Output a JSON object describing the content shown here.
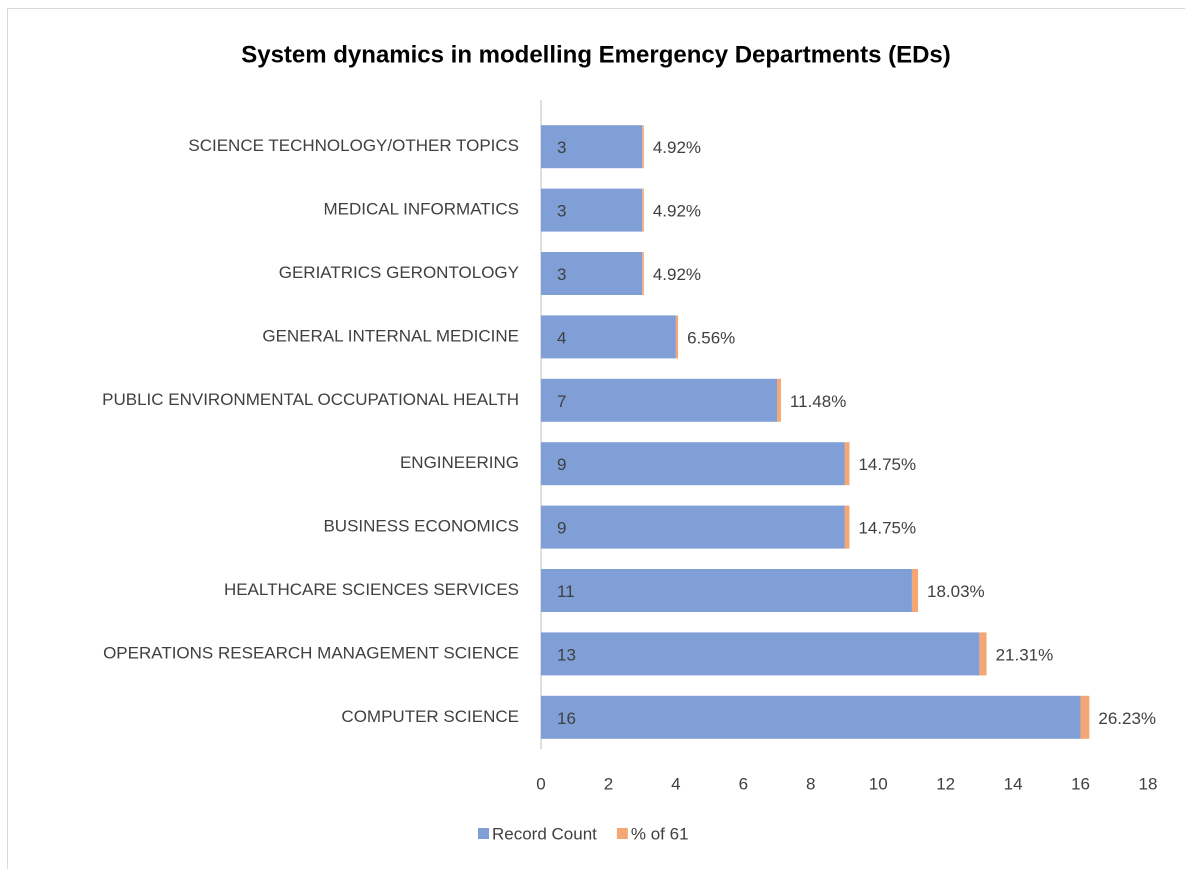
{
  "chart_data": {
    "type": "stacked_bar_horizontal",
    "title": "System dynamics in modelling Emergency Departments (EDs)",
    "categories": [
      "SCIENCE TECHNOLOGY/OTHER TOPICS",
      "MEDICAL INFORMATICS",
      "GERIATRICS GERONTOLOGY",
      "GENERAL INTERNAL MEDICINE",
      "PUBLIC ENVIRONMENTAL OCCUPATIONAL HEALTH",
      "ENGINEERING",
      "BUSINESS ECONOMICS",
      "HEALTHCARE SCIENCES SERVICES",
      "OPERATIONS RESEARCH MANAGEMENT SCIENCE",
      "COMPUTER SCIENCE"
    ],
    "series": [
      {
        "name": "Record Count",
        "color": "#7f9fd6",
        "values": [
          3,
          3,
          3,
          4,
          7,
          9,
          9,
          11,
          13,
          16
        ]
      },
      {
        "name": "% of 61",
        "color": "#f4a775",
        "values": [
          0.0492,
          0.0492,
          0.0492,
          0.0656,
          0.1148,
          0.1475,
          0.1475,
          0.1803,
          0.2131,
          0.2623
        ],
        "value_labels": [
          "4.92%",
          "4.92%",
          "4.92%",
          "6.56%",
          "11.48%",
          "14.75%",
          "14.75%",
          "18.03%",
          "21.31%",
          "26.23%"
        ]
      }
    ],
    "xlim": [
      0,
      18
    ],
    "xticks": [
      0,
      2,
      4,
      6,
      8,
      10,
      12,
      14,
      16,
      18
    ],
    "legend": "bottom",
    "grid": false
  }
}
